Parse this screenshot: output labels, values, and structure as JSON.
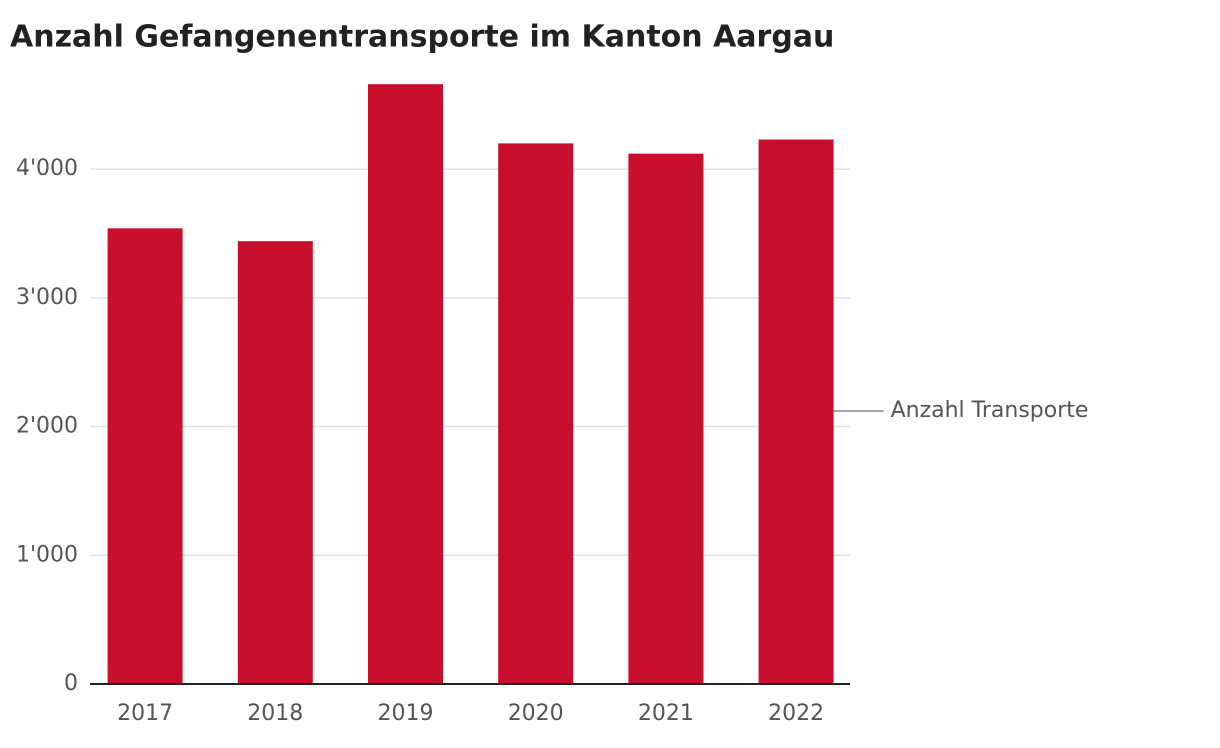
{
  "chart_data": {
    "type": "bar",
    "title": "Anzahl Gefangenentransporte im Kanton Aargau",
    "categories": [
      "2017",
      "2018",
      "2019",
      "2020",
      "2021",
      "2022"
    ],
    "series": [
      {
        "name": "Anzahl Transporte",
        "color": "#c8102e",
        "values": [
          3540,
          3440,
          4660,
          4200,
          4120,
          4230
        ]
      }
    ],
    "ylim": [
      0,
      4700
    ],
    "yticks": [
      0,
      {
        "value": 1000,
        "label": "1'000"
      },
      {
        "value": 2000,
        "label": "2'000"
      },
      {
        "value": 3000,
        "label": "3'000"
      },
      {
        "value": 4000,
        "label": "4'000"
      }
    ],
    "grid": true
  }
}
